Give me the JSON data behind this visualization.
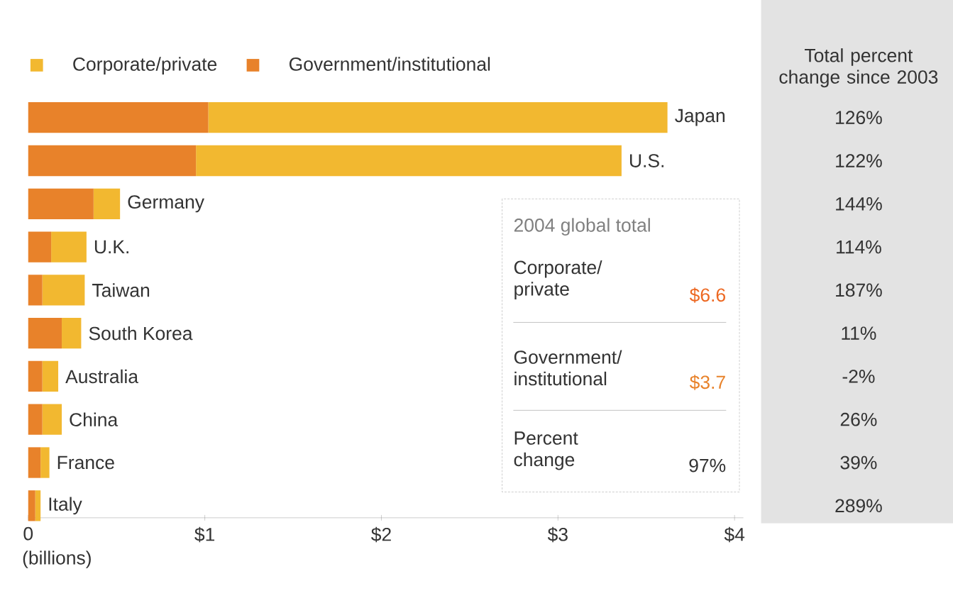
{
  "chart_data": {
    "type": "bar",
    "orientation": "horizontal",
    "stacked": true,
    "legend": "top left",
    "categories": [
      "Japan",
      "U.S.",
      "Germany",
      "U.K.",
      "Taiwan",
      "South Korea",
      "Australia",
      "China",
      "France",
      "Italy"
    ],
    "series": [
      {
        "name": "Government/institutional",
        "color": "#e8822a",
        "values": [
          1.02,
          0.95,
          0.37,
          0.13,
          0.08,
          0.19,
          0.08,
          0.08,
          0.07,
          0.04
        ]
      },
      {
        "name": "Corporate/private",
        "color": "#f2b830",
        "values": [
          2.6,
          2.41,
          0.15,
          0.2,
          0.24,
          0.11,
          0.09,
          0.11,
          0.05,
          0.03
        ]
      }
    ],
    "xlim": [
      0,
      4.05
    ],
    "xticks": [
      0,
      {
        "value": 1,
        "label": "$1"
      },
      {
        "value": 2,
        "label": "$2"
      },
      {
        "value": 3,
        "label": "$3"
      },
      {
        "value": 4,
        "label": "$4"
      }
    ],
    "xlabel": "(billions)",
    "annotations": [
      "Total percent change since 2003",
      "126%",
      "122%",
      "144%",
      "114%",
      "187%",
      "11%",
      "-2%",
      "26%",
      "39%",
      "289%",
      "2004 global total",
      "Corporate/ private",
      "$6.6",
      "Government/ institutional",
      "$3.7",
      "Percent change",
      "97%"
    ]
  }
}
